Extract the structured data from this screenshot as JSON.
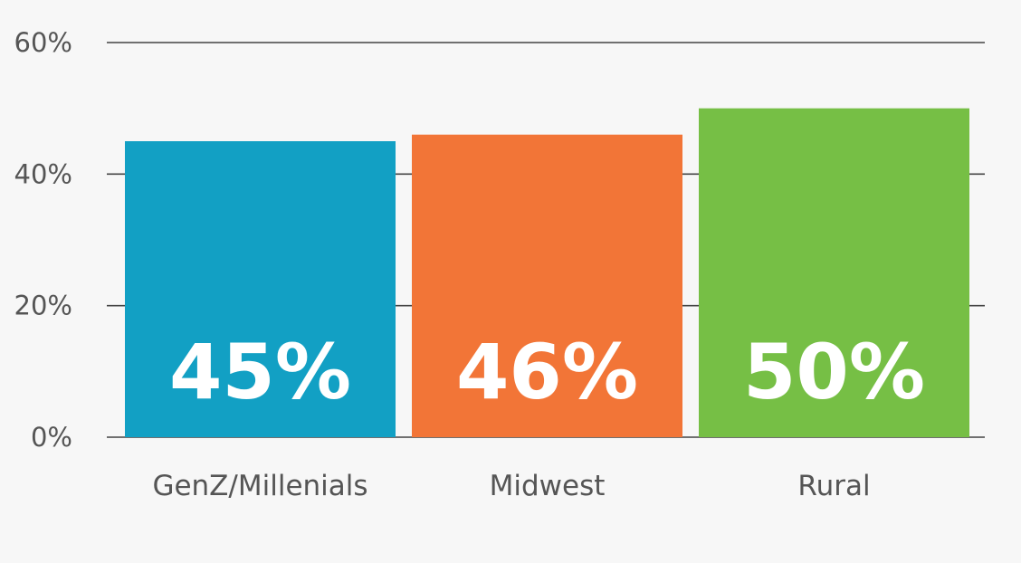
{
  "chart_data": {
    "type": "bar",
    "categories": [
      "GenZ/Millenials",
      "Midwest",
      "Rural"
    ],
    "values": [
      45,
      46,
      50
    ],
    "value_labels": [
      "45%",
      "46%",
      "50%"
    ],
    "colors": [
      "#12a0c4",
      "#f27537",
      "#76bf45"
    ],
    "ylim": [
      0,
      60
    ],
    "yticks": [
      0,
      20,
      40,
      60
    ],
    "ytick_labels": [
      "0%",
      "20%",
      "40%",
      "60%"
    ],
    "grid": true,
    "title": "",
    "xlabel": "",
    "ylabel": ""
  }
}
